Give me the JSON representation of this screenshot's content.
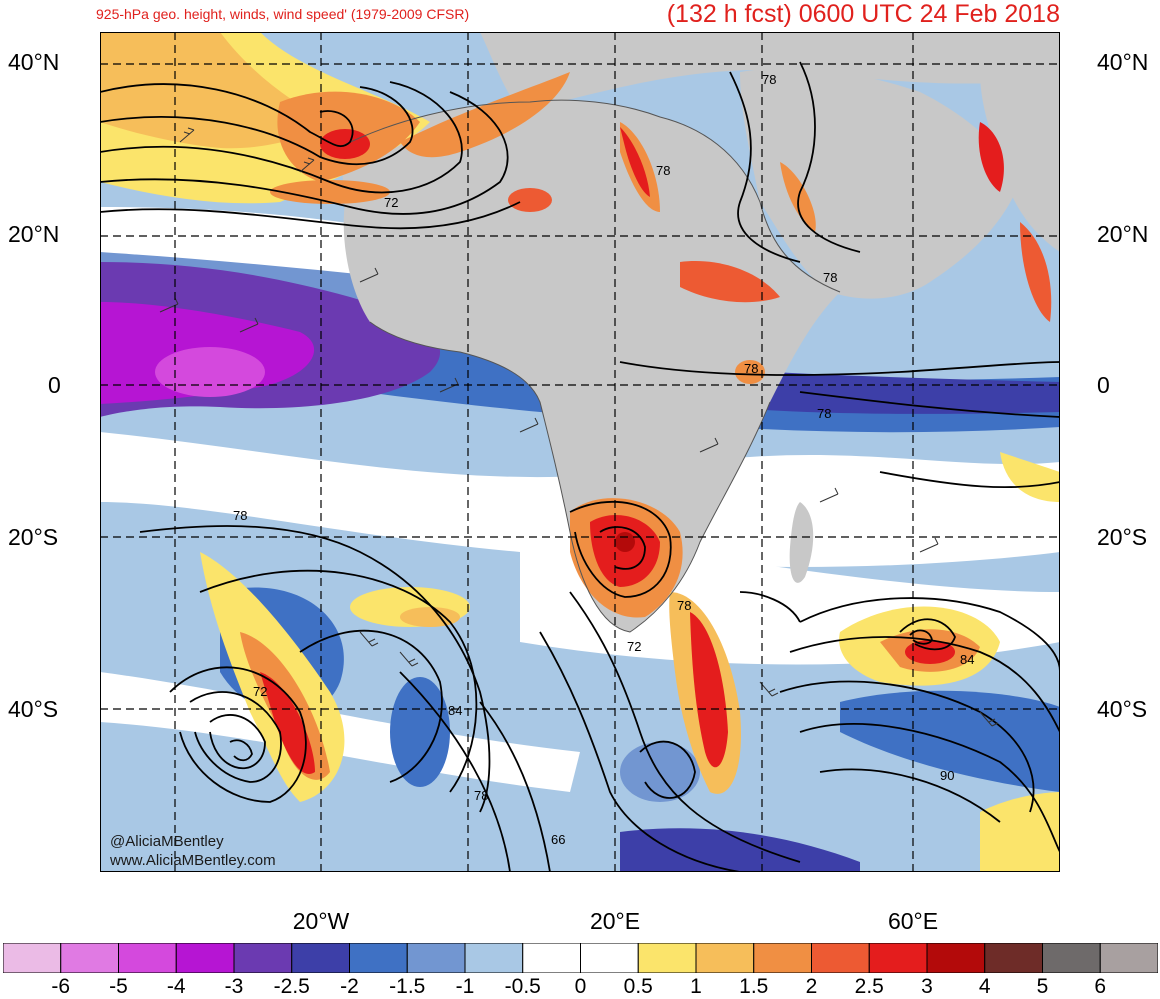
{
  "header": {
    "subtitle": "925-hPa geo. height, winds, wind speed' (1979-2009 CFSR)",
    "title": "(132 h fcst) 0600 UTC 24 Feb 2018"
  },
  "map": {
    "lat_labels": [
      "40°N",
      "20°N",
      "0",
      "20°S",
      "40°S"
    ],
    "lon_labels": [
      "20°W",
      "20°E",
      "60°E"
    ],
    "contour_labels": [
      "78",
      "78",
      "72",
      "78",
      "78",
      "78",
      "78",
      "78",
      "72",
      "72",
      "84",
      "84",
      "78",
      "66",
      "90"
    ],
    "credit": [
      "@AliciaMBentley",
      "www.AliciaMBentley.com"
    ]
  },
  "colorbar": {
    "labels": [
      "-6",
      "-5",
      "-4",
      "-3",
      "-2.5",
      "-2",
      "-1.5",
      "-1",
      "-0.5",
      "0",
      "0.5",
      "1",
      "1.5",
      "2",
      "2.5",
      "3",
      "4",
      "5",
      "6"
    ],
    "colors": [
      "#ebbbe6",
      "#e07ae3",
      "#d449dd",
      "#b615d3",
      "#6b3ab1",
      "#3d3fa8",
      "#3f71c4",
      "#7296d1",
      "#a9c8e5",
      "#ffffff",
      "#ffffff",
      "#fbe46b",
      "#f6be5a",
      "#f08f43",
      "#ed5a33",
      "#e41d1d",
      "#b30a0a",
      "#6e2c28",
      "#6e6a6a",
      "#a8a0a0"
    ]
  }
}
